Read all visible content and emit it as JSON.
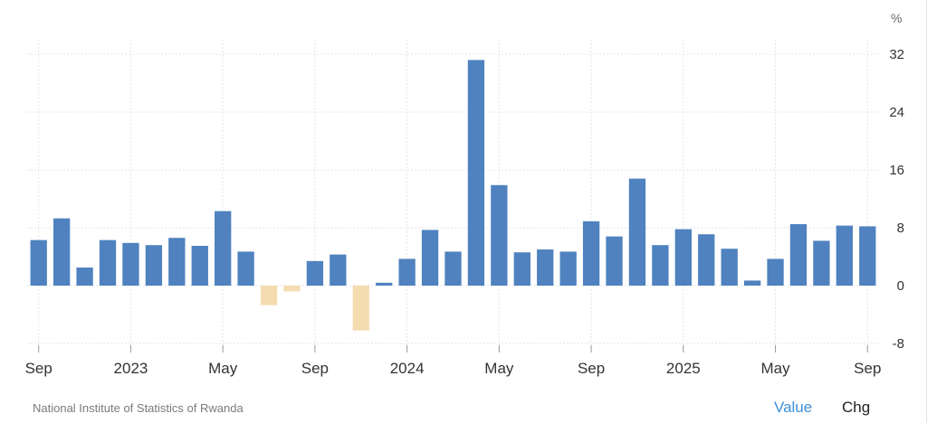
{
  "chart_data": {
    "type": "bar",
    "unit": "%",
    "ylim": [
      -8,
      32
    ],
    "y_ticks": [
      32,
      24,
      16,
      8,
      0,
      -8
    ],
    "x_tick_labels": [
      {
        "index": 0,
        "label": "Sep"
      },
      {
        "index": 4,
        "label": "2023"
      },
      {
        "index": 8,
        "label": "May"
      },
      {
        "index": 12,
        "label": "Sep"
      },
      {
        "index": 16,
        "label": "2024"
      },
      {
        "index": 20,
        "label": "May"
      },
      {
        "index": 24,
        "label": "Sep"
      },
      {
        "index": 28,
        "label": "2025"
      },
      {
        "index": 32,
        "label": "May"
      },
      {
        "index": 36,
        "label": "Sep"
      }
    ],
    "values": [
      6.3,
      9.3,
      2.5,
      6.3,
      5.9,
      5.6,
      6.6,
      5.5,
      10.3,
      4.7,
      -2.7,
      -0.8,
      3.4,
      4.3,
      -6.2,
      0.4,
      3.7,
      7.7,
      4.7,
      31.2,
      13.9,
      4.6,
      5.0,
      4.7,
      8.9,
      6.8,
      14.8,
      5.6,
      7.8,
      7.1,
      5.1,
      0.7,
      3.7,
      8.5,
      6.2,
      8.3,
      8.2
    ],
    "positive_color": "#4f82bf",
    "negative_color": "#f5dcb0",
    "grid": true
  },
  "footer": {
    "source": "National Institute of Statistics of Rwanda",
    "toggle_value": "Value",
    "toggle_chg": "Chg"
  }
}
